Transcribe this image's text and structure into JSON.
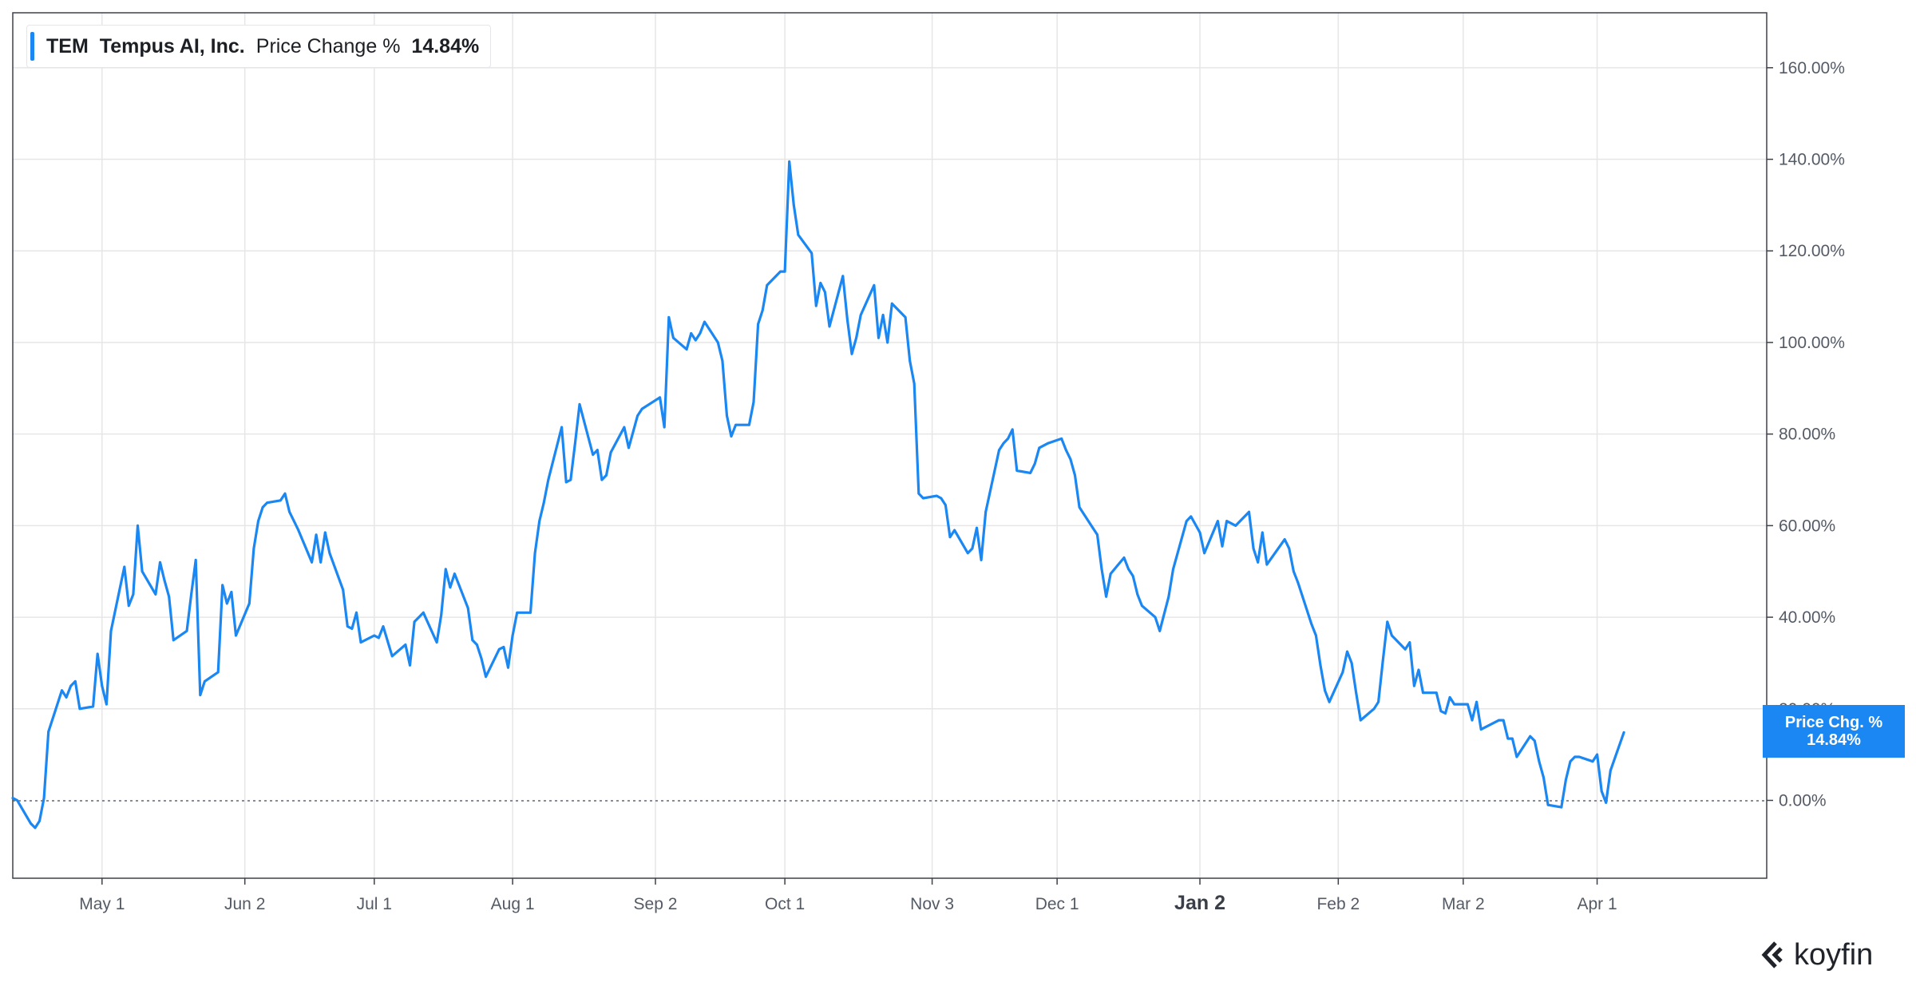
{
  "legend": {
    "ticker": "TEM",
    "company": "Tempus AI, Inc.",
    "metric": "Price Change %",
    "value": "14.84%",
    "color": "#1a87f2"
  },
  "badge": {
    "label": "Price Chg. %",
    "value": "14.84%"
  },
  "branding": {
    "name": "koyfin",
    "icon": "koyfin-logo-icon"
  },
  "chart_data": {
    "type": "line",
    "title": "",
    "xlabel": "",
    "ylabel": "",
    "ylim": [
      -17,
      172
    ],
    "y_ticks": [
      0,
      20,
      40,
      60,
      80,
      100,
      120,
      140,
      160
    ],
    "y_tick_labels": [
      "0.00%",
      "20.00%",
      "40.00%",
      "60.00%",
      "80.00%",
      "100.00%",
      "120.00%",
      "140.00%",
      "160.00%"
    ],
    "x_ticks": [
      {
        "label": "May 1",
        "date": "2024-05-01",
        "bold": false
      },
      {
        "label": "Jun 2",
        "date": "2024-06-02",
        "bold": false
      },
      {
        "label": "Jul 1",
        "date": "2024-07-01",
        "bold": false
      },
      {
        "label": "Aug 1",
        "date": "2024-08-01",
        "bold": false
      },
      {
        "label": "Sep 2",
        "date": "2024-09-02",
        "bold": false
      },
      {
        "label": "Oct 1",
        "date": "2024-10-01",
        "bold": false
      },
      {
        "label": "Nov 3",
        "date": "2024-11-03",
        "bold": false
      },
      {
        "label": "Dec 1",
        "date": "2024-12-01",
        "bold": false
      },
      {
        "label": "Jan 2",
        "date": "2025-01-02",
        "bold": true
      },
      {
        "label": "Feb 2",
        "date": "2025-02-02",
        "bold": false
      },
      {
        "label": "Mar 2",
        "date": "2025-03-02",
        "bold": false
      },
      {
        "label": "Apr 1",
        "date": "2025-04-01",
        "bold": false
      }
    ],
    "x_range": [
      "2024-04-11",
      "2025-05-09"
    ],
    "grid": true,
    "zero_line": "dotted",
    "series": [
      {
        "color": "#1a87f2",
        "points": [
          [
            "2024-04-11",
            0.5
          ],
          [
            "2024-04-12",
            0.0
          ],
          [
            "2024-04-15",
            -5.0
          ],
          [
            "2024-04-16",
            -6.0
          ],
          [
            "2024-04-17",
            -4.5
          ],
          [
            "2024-04-18",
            0.5
          ],
          [
            "2024-04-19",
            15.0
          ],
          [
            "2024-04-22",
            24.0
          ],
          [
            "2024-04-23",
            22.5
          ],
          [
            "2024-04-24",
            25.0
          ],
          [
            "2024-04-25",
            26.0
          ],
          [
            "2024-04-26",
            20.0
          ],
          [
            "2024-04-29",
            20.5
          ],
          [
            "2024-04-30",
            32.0
          ],
          [
            "2024-05-01",
            25.0
          ],
          [
            "2024-05-02",
            21.0
          ],
          [
            "2024-05-03",
            37.0
          ],
          [
            "2024-05-06",
            51.0
          ],
          [
            "2024-05-07",
            42.5
          ],
          [
            "2024-05-08",
            45.0
          ],
          [
            "2024-05-09",
            60.0
          ],
          [
            "2024-05-10",
            50.0
          ],
          [
            "2024-05-13",
            45.0
          ],
          [
            "2024-05-14",
            52.0
          ],
          [
            "2024-05-15",
            48.0
          ],
          [
            "2024-05-16",
            44.5
          ],
          [
            "2024-05-17",
            35.0
          ],
          [
            "2024-05-20",
            37.0
          ],
          [
            "2024-05-21",
            45.0
          ],
          [
            "2024-05-22",
            52.5
          ],
          [
            "2024-05-23",
            23.0
          ],
          [
            "2024-05-24",
            26.0
          ],
          [
            "2024-05-27",
            28.0
          ],
          [
            "2024-05-28",
            47.0
          ],
          [
            "2024-05-29",
            43.0
          ],
          [
            "2024-05-30",
            45.5
          ],
          [
            "2024-05-31",
            36.0
          ],
          [
            "2024-06-03",
            43.0
          ],
          [
            "2024-06-04",
            55.0
          ],
          [
            "2024-06-05",
            61.0
          ],
          [
            "2024-06-06",
            64.0
          ],
          [
            "2024-06-07",
            65.0
          ],
          [
            "2024-06-10",
            65.5
          ],
          [
            "2024-06-11",
            67.0
          ],
          [
            "2024-06-12",
            63.0
          ],
          [
            "2024-06-13",
            61.0
          ],
          [
            "2024-06-14",
            59.0
          ],
          [
            "2024-06-17",
            52.0
          ],
          [
            "2024-06-18",
            58.0
          ],
          [
            "2024-06-19",
            52.0
          ],
          [
            "2024-06-20",
            58.5
          ],
          [
            "2024-06-21",
            54.0
          ],
          [
            "2024-06-24",
            46.0
          ],
          [
            "2024-06-25",
            38.0
          ],
          [
            "2024-06-26",
            37.5
          ],
          [
            "2024-06-27",
            41.0
          ],
          [
            "2024-06-28",
            34.5
          ],
          [
            "2024-07-01",
            36.0
          ],
          [
            "2024-07-02",
            35.5
          ],
          [
            "2024-07-03",
            38.0
          ],
          [
            "2024-07-05",
            31.5
          ],
          [
            "2024-07-08",
            34.0
          ],
          [
            "2024-07-09",
            29.5
          ],
          [
            "2024-07-10",
            39.0
          ],
          [
            "2024-07-11",
            40.0
          ],
          [
            "2024-07-12",
            41.0
          ],
          [
            "2024-07-15",
            34.5
          ],
          [
            "2024-07-16",
            40.5
          ],
          [
            "2024-07-17",
            50.5
          ],
          [
            "2024-07-18",
            46.5
          ],
          [
            "2024-07-19",
            49.5
          ],
          [
            "2024-07-22",
            42.0
          ],
          [
            "2024-07-23",
            35.0
          ],
          [
            "2024-07-24",
            34.0
          ],
          [
            "2024-07-25",
            31.0
          ],
          [
            "2024-07-26",
            27.0
          ],
          [
            "2024-07-29",
            33.0
          ],
          [
            "2024-07-30",
            33.5
          ],
          [
            "2024-07-31",
            29.0
          ],
          [
            "2024-08-01",
            36.0
          ],
          [
            "2024-08-02",
            41.0
          ],
          [
            "2024-08-05",
            41.0
          ],
          [
            "2024-08-06",
            54.0
          ],
          [
            "2024-08-07",
            61.0
          ],
          [
            "2024-08-08",
            65.0
          ],
          [
            "2024-08-09",
            70.0
          ],
          [
            "2024-08-12",
            81.5
          ],
          [
            "2024-08-13",
            69.5
          ],
          [
            "2024-08-14",
            70.0
          ],
          [
            "2024-08-15",
            78.0
          ],
          [
            "2024-08-16",
            86.5
          ],
          [
            "2024-08-19",
            75.5
          ],
          [
            "2024-08-20",
            76.5
          ],
          [
            "2024-08-21",
            70.0
          ],
          [
            "2024-08-22",
            71.0
          ],
          [
            "2024-08-23",
            76.0
          ],
          [
            "2024-08-26",
            81.5
          ],
          [
            "2024-08-27",
            77.0
          ],
          [
            "2024-08-28",
            80.5
          ],
          [
            "2024-08-29",
            84.0
          ],
          [
            "2024-08-30",
            85.5
          ],
          [
            "2024-09-03",
            88.0
          ],
          [
            "2024-09-04",
            81.5
          ],
          [
            "2024-09-05",
            105.5
          ],
          [
            "2024-09-06",
            101.0
          ],
          [
            "2024-09-09",
            98.5
          ],
          [
            "2024-09-10",
            102.0
          ],
          [
            "2024-09-11",
            100.5
          ],
          [
            "2024-09-12",
            102.0
          ],
          [
            "2024-09-13",
            104.5
          ],
          [
            "2024-09-16",
            100.0
          ],
          [
            "2024-09-17",
            96.0
          ],
          [
            "2024-09-18",
            84.0
          ],
          [
            "2024-09-19",
            79.5
          ],
          [
            "2024-09-20",
            82.0
          ],
          [
            "2024-09-23",
            82.0
          ],
          [
            "2024-09-24",
            87.0
          ],
          [
            "2024-09-25",
            104.0
          ],
          [
            "2024-09-26",
            107.0
          ],
          [
            "2024-09-27",
            112.5
          ],
          [
            "2024-09-30",
            115.5
          ],
          [
            "2024-10-01",
            115.5
          ],
          [
            "2024-10-02",
            139.5
          ],
          [
            "2024-10-03",
            130.0
          ],
          [
            "2024-10-04",
            123.5
          ],
          [
            "2024-10-07",
            119.5
          ],
          [
            "2024-10-08",
            108.0
          ],
          [
            "2024-10-09",
            113.0
          ],
          [
            "2024-10-10",
            111.0
          ],
          [
            "2024-10-11",
            103.5
          ],
          [
            "2024-10-14",
            114.5
          ],
          [
            "2024-10-15",
            105.0
          ],
          [
            "2024-10-16",
            97.5
          ],
          [
            "2024-10-17",
            101.0
          ],
          [
            "2024-10-18",
            106.0
          ],
          [
            "2024-10-21",
            112.5
          ],
          [
            "2024-10-22",
            101.0
          ],
          [
            "2024-10-23",
            106.0
          ],
          [
            "2024-10-24",
            100.0
          ],
          [
            "2024-10-25",
            108.5
          ],
          [
            "2024-10-28",
            105.5
          ],
          [
            "2024-10-29",
            96.0
          ],
          [
            "2024-10-30",
            91.0
          ],
          [
            "2024-10-31",
            67.0
          ],
          [
            "2024-11-01",
            66.0
          ],
          [
            "2024-11-04",
            66.5
          ],
          [
            "2024-11-05",
            66.0
          ],
          [
            "2024-11-06",
            64.5
          ],
          [
            "2024-11-07",
            57.5
          ],
          [
            "2024-11-08",
            59.0
          ],
          [
            "2024-11-11",
            54.0
          ],
          [
            "2024-11-12",
            55.0
          ],
          [
            "2024-11-13",
            59.5
          ],
          [
            "2024-11-14",
            52.5
          ],
          [
            "2024-11-15",
            63.0
          ],
          [
            "2024-11-18",
            76.5
          ],
          [
            "2024-11-19",
            78.0
          ],
          [
            "2024-11-20",
            79.0
          ],
          [
            "2024-11-21",
            81.0
          ],
          [
            "2024-11-22",
            72.0
          ],
          [
            "2024-11-25",
            71.5
          ],
          [
            "2024-11-26",
            73.5
          ],
          [
            "2024-11-27",
            77.0
          ],
          [
            "2024-11-29",
            78.0
          ],
          [
            "2024-12-02",
            79.0
          ],
          [
            "2024-12-03",
            76.5
          ],
          [
            "2024-12-04",
            74.5
          ],
          [
            "2024-12-05",
            71.0
          ],
          [
            "2024-12-06",
            64.0
          ],
          [
            "2024-12-09",
            59.5
          ],
          [
            "2024-12-10",
            58.0
          ],
          [
            "2024-12-11",
            50.5
          ],
          [
            "2024-12-12",
            44.5
          ],
          [
            "2024-12-13",
            49.5
          ],
          [
            "2024-12-16",
            53.0
          ],
          [
            "2024-12-17",
            50.5
          ],
          [
            "2024-12-18",
            49.0
          ],
          [
            "2024-12-19",
            45.0
          ],
          [
            "2024-12-20",
            42.5
          ],
          [
            "2024-12-23",
            40.0
          ],
          [
            "2024-12-24",
            37.0
          ],
          [
            "2024-12-26",
            44.5
          ],
          [
            "2024-12-27",
            50.5
          ],
          [
            "2024-12-30",
            61.0
          ],
          [
            "2024-12-31",
            62.0
          ],
          [
            "2025-01-02",
            58.5
          ],
          [
            "2025-01-03",
            54.0
          ],
          [
            "2025-01-06",
            61.0
          ],
          [
            "2025-01-07",
            55.5
          ],
          [
            "2025-01-08",
            61.0
          ],
          [
            "2025-01-10",
            60.0
          ],
          [
            "2025-01-13",
            63.0
          ],
          [
            "2025-01-14",
            55.0
          ],
          [
            "2025-01-15",
            52.0
          ],
          [
            "2025-01-16",
            58.5
          ],
          [
            "2025-01-17",
            51.5
          ],
          [
            "2025-01-21",
            57.0
          ],
          [
            "2025-01-22",
            55.0
          ],
          [
            "2025-01-23",
            50.0
          ],
          [
            "2025-01-24",
            47.5
          ],
          [
            "2025-01-27",
            38.5
          ],
          [
            "2025-01-28",
            36.0
          ],
          [
            "2025-01-29",
            29.5
          ],
          [
            "2025-01-30",
            24.0
          ],
          [
            "2025-01-31",
            21.5
          ],
          [
            "2025-02-03",
            28.0
          ],
          [
            "2025-02-04",
            32.5
          ],
          [
            "2025-02-05",
            30.0
          ],
          [
            "2025-02-06",
            23.5
          ],
          [
            "2025-02-07",
            17.5
          ],
          [
            "2025-02-10",
            20.0
          ],
          [
            "2025-02-11",
            21.5
          ],
          [
            "2025-02-12",
            30.5
          ],
          [
            "2025-02-13",
            39.0
          ],
          [
            "2025-02-14",
            36.0
          ],
          [
            "2025-02-17",
            33.0
          ],
          [
            "2025-02-18",
            34.5
          ],
          [
            "2025-02-19",
            25.0
          ],
          [
            "2025-02-20",
            28.5
          ],
          [
            "2025-02-21",
            23.5
          ],
          [
            "2025-02-24",
            23.5
          ],
          [
            "2025-02-25",
            19.5
          ],
          [
            "2025-02-26",
            19.0
          ],
          [
            "2025-02-27",
            22.5
          ],
          [
            "2025-02-28",
            21.0
          ],
          [
            "2025-03-03",
            21.0
          ],
          [
            "2025-03-04",
            17.5
          ],
          [
            "2025-03-05",
            21.5
          ],
          [
            "2025-03-06",
            15.5
          ],
          [
            "2025-03-07",
            16.0
          ],
          [
            "2025-03-10",
            17.5
          ],
          [
            "2025-03-11",
            17.5
          ],
          [
            "2025-03-12",
            13.5
          ],
          [
            "2025-03-13",
            13.5
          ],
          [
            "2025-03-14",
            9.5
          ],
          [
            "2025-03-17",
            14.0
          ],
          [
            "2025-03-18",
            13.0
          ],
          [
            "2025-03-19",
            8.5
          ],
          [
            "2025-03-20",
            5.0
          ],
          [
            "2025-03-21",
            -1.0
          ],
          [
            "2025-03-24",
            -1.5
          ],
          [
            "2025-03-25",
            4.5
          ],
          [
            "2025-03-26",
            8.5
          ],
          [
            "2025-03-27",
            9.5
          ],
          [
            "2025-03-28",
            9.5
          ],
          [
            "2025-03-31",
            8.5
          ],
          [
            "2025-04-01",
            10.0
          ],
          [
            "2025-04-02",
            2.0
          ],
          [
            "2025-04-03",
            -0.5
          ],
          [
            "2025-04-04",
            6.5
          ],
          [
            "2025-04-07",
            14.84
          ]
        ]
      }
    ]
  }
}
